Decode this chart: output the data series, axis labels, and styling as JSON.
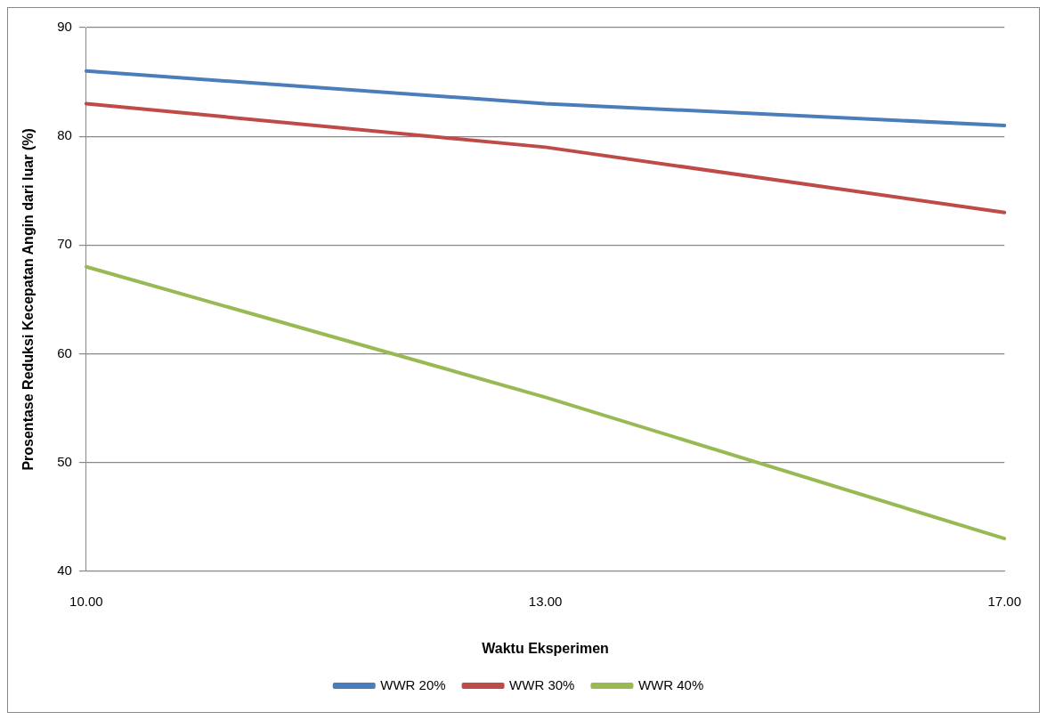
{
  "chart_data": {
    "type": "line",
    "xlabel": "Waktu Eksperimen",
    "ylabel": "Prosentase Reduksi Kecepatan Angin dari luar (%)",
    "categories": [
      "10.00",
      "13.00",
      "17.00"
    ],
    "series": [
      {
        "name": "WWR 20%",
        "color": "#4a7ebb",
        "values": [
          86,
          83,
          81
        ]
      },
      {
        "name": "WWR 30%",
        "color": "#be4b48",
        "values": [
          83,
          79,
          73
        ]
      },
      {
        "name": "WWR 40%",
        "color": "#98b954",
        "values": [
          68,
          56,
          43
        ]
      }
    ],
    "ylim": [
      40,
      90
    ],
    "yticks": [
      40,
      50,
      60,
      70,
      80,
      90
    ],
    "grid": "y",
    "legend": "bottom",
    "marker": "none",
    "line_style": "solid"
  }
}
